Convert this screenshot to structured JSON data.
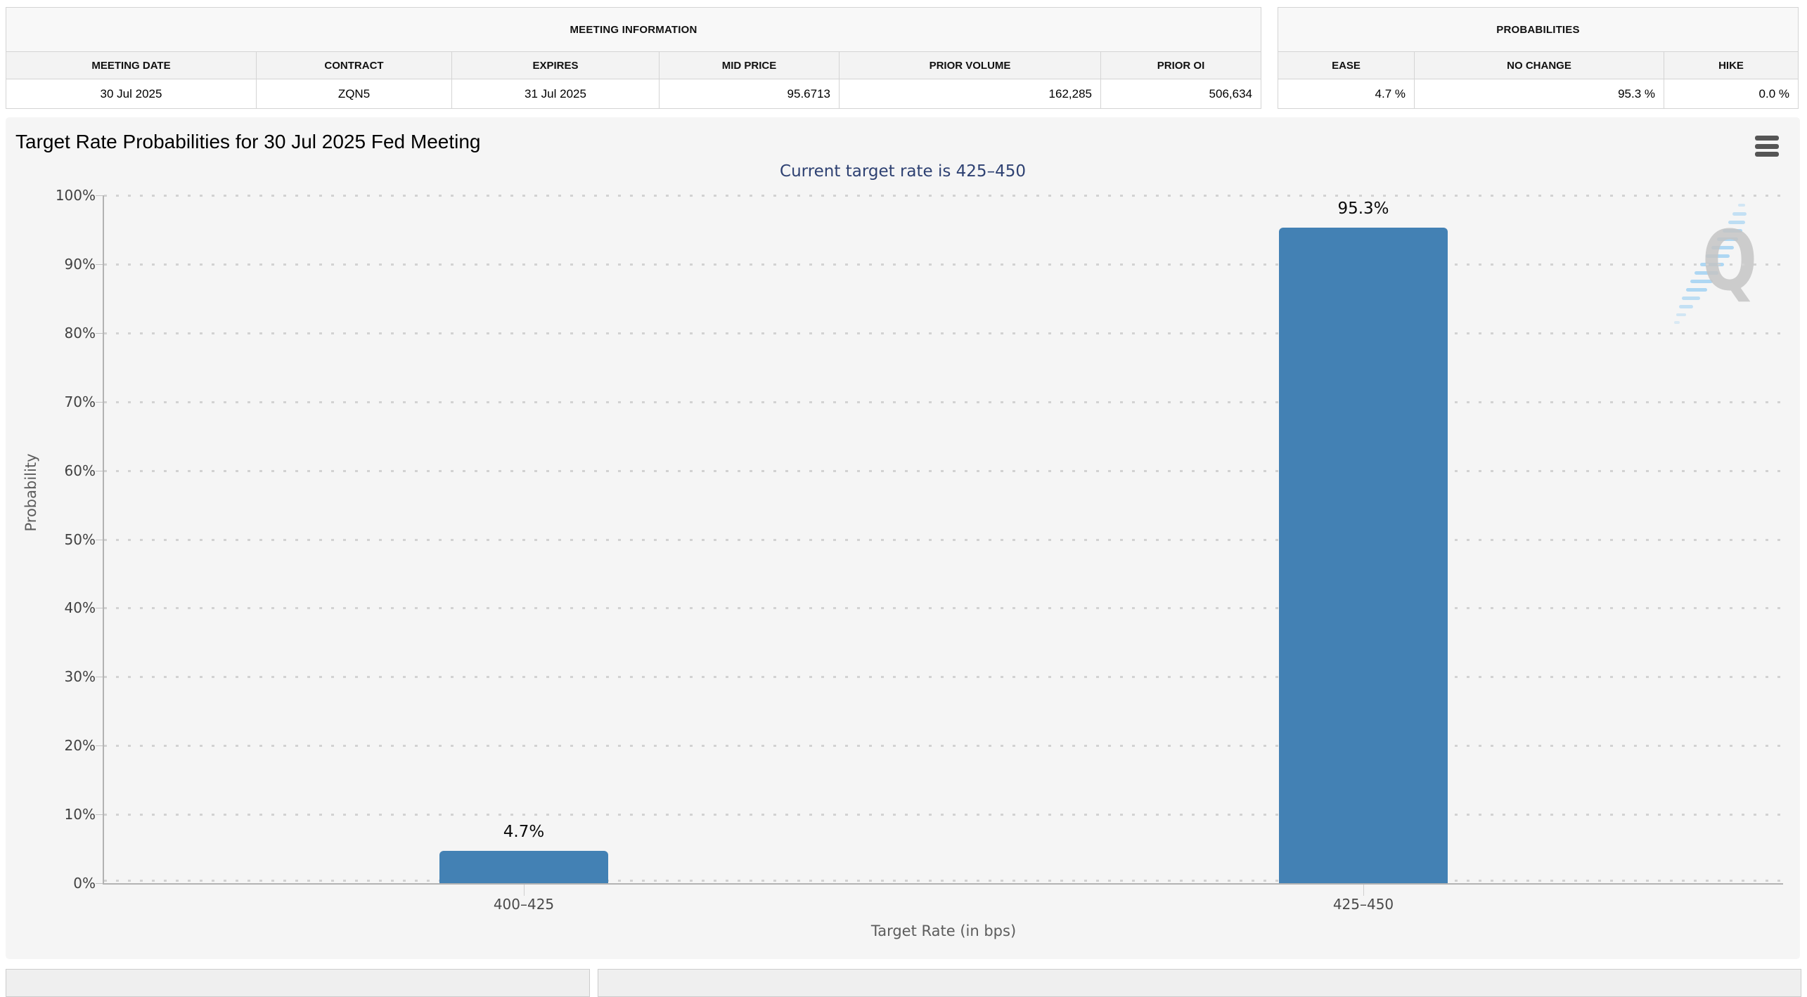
{
  "meeting_info": {
    "title": "MEETING INFORMATION",
    "columns": [
      "MEETING DATE",
      "CONTRACT",
      "EXPIRES",
      "MID PRICE",
      "PRIOR VOLUME",
      "PRIOR OI"
    ],
    "values": [
      "30 Jul 2025",
      "ZQN5",
      "31 Jul 2025",
      "95.6713",
      "162,285",
      "506,634"
    ]
  },
  "probabilities": {
    "title": "PROBABILITIES",
    "columns": [
      "EASE",
      "NO CHANGE",
      "HIKE"
    ],
    "values": [
      "4.7 %",
      "95.3 %",
      "0.0 %"
    ]
  },
  "chart": {
    "title": "Target Rate Probabilities for 30 Jul 2025 Fed Meeting",
    "subtitle": "Current target rate is 425–450",
    "menu_icon": "hamburger-icon",
    "watermark_letter": "Q"
  },
  "chart_data": {
    "type": "bar",
    "categories": [
      "400–425",
      "425–450"
    ],
    "values": [
      4.7,
      95.3
    ],
    "data_labels": [
      "4.7%",
      "95.3%"
    ],
    "title": "Target Rate Probabilities for 30 Jul 2025 Fed Meeting",
    "subtitle": "Current target rate is 425–450",
    "xlabel": "Target Rate (in bps)",
    "ylabel": "Probability",
    "ylim": [
      0,
      100
    ],
    "ytick_step": 10,
    "ytick_suffix": "%",
    "grid": "dotted-horizontal",
    "legend": "none",
    "bar_color": "#4381b4",
    "subtitle_color": "#2e4172"
  }
}
